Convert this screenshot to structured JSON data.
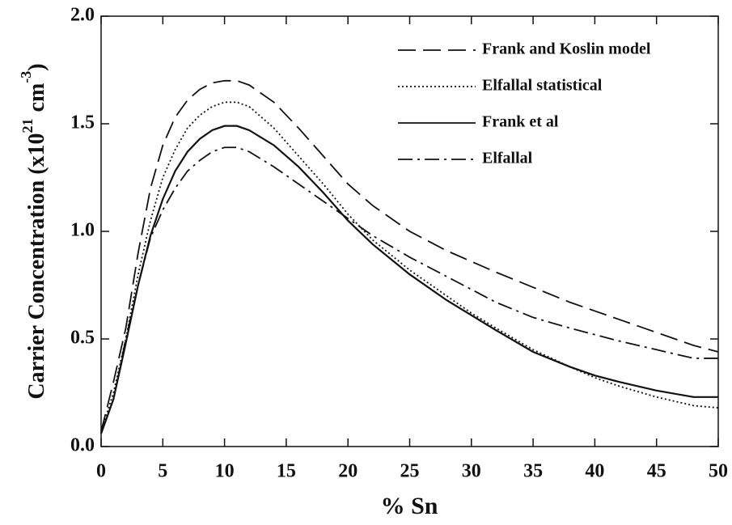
{
  "chart_data": {
    "type": "line",
    "ylabel_parts": [
      "Carrier Concentration (x10",
      "21",
      "cm",
      "-3",
      ")"
    ],
    "xlabel": "% Sn",
    "x": [
      0,
      1,
      2,
      3,
      4,
      5,
      6,
      7,
      8,
      9,
      10,
      11,
      12,
      14,
      16,
      18,
      20,
      22,
      25,
      28,
      30,
      32,
      35,
      38,
      40,
      42,
      45,
      48,
      50
    ],
    "series": [
      {
        "name": "Frank and Koslin model",
        "color": "#111111",
        "line_style": "dashed",
        "values": [
          0.07,
          0.3,
          0.55,
          0.9,
          1.2,
          1.4,
          1.53,
          1.61,
          1.66,
          1.69,
          1.7,
          1.7,
          1.68,
          1.6,
          1.48,
          1.35,
          1.22,
          1.12,
          1.0,
          0.91,
          0.86,
          0.81,
          0.74,
          0.67,
          0.63,
          0.59,
          0.53,
          0.47,
          0.44
        ]
      },
      {
        "name": "Elfallal statistical",
        "color": "#111111",
        "line_style": "dotted",
        "values": [
          0.07,
          0.25,
          0.5,
          0.8,
          1.05,
          1.25,
          1.38,
          1.48,
          1.54,
          1.58,
          1.6,
          1.6,
          1.58,
          1.48,
          1.35,
          1.22,
          1.08,
          0.96,
          0.82,
          0.7,
          0.62,
          0.55,
          0.45,
          0.37,
          0.32,
          0.28,
          0.23,
          0.19,
          0.18
        ]
      },
      {
        "name": "Frank et al",
        "color": "#111111",
        "line_style": "solid",
        "values": [
          0.06,
          0.22,
          0.48,
          0.75,
          0.98,
          1.15,
          1.28,
          1.37,
          1.43,
          1.47,
          1.49,
          1.49,
          1.47,
          1.4,
          1.3,
          1.18,
          1.05,
          0.94,
          0.8,
          0.68,
          0.61,
          0.54,
          0.44,
          0.37,
          0.33,
          0.3,
          0.26,
          0.23,
          0.23
        ]
      },
      {
        "name": "Elfallal",
        "color": "#111111",
        "line_style": "dashdot",
        "values": [
          0.06,
          0.22,
          0.5,
          0.75,
          0.97,
          1.1,
          1.2,
          1.28,
          1.33,
          1.37,
          1.39,
          1.39,
          1.37,
          1.3,
          1.22,
          1.14,
          1.06,
          0.98,
          0.88,
          0.79,
          0.73,
          0.67,
          0.6,
          0.55,
          0.52,
          0.49,
          0.45,
          0.41,
          0.41
        ]
      }
    ],
    "xlim": [
      0,
      50
    ],
    "xticks": [
      0,
      5,
      10,
      15,
      20,
      25,
      30,
      35,
      40,
      45,
      50
    ],
    "ylim": [
      0,
      2
    ],
    "yticks": [
      {
        "value": 0,
        "label": "0.0"
      },
      0.5,
      {
        "value": 1,
        "label": "1.0"
      },
      1.5,
      {
        "value": 2,
        "label": "2.0"
      }
    ],
    "legend": "upper-right"
  }
}
